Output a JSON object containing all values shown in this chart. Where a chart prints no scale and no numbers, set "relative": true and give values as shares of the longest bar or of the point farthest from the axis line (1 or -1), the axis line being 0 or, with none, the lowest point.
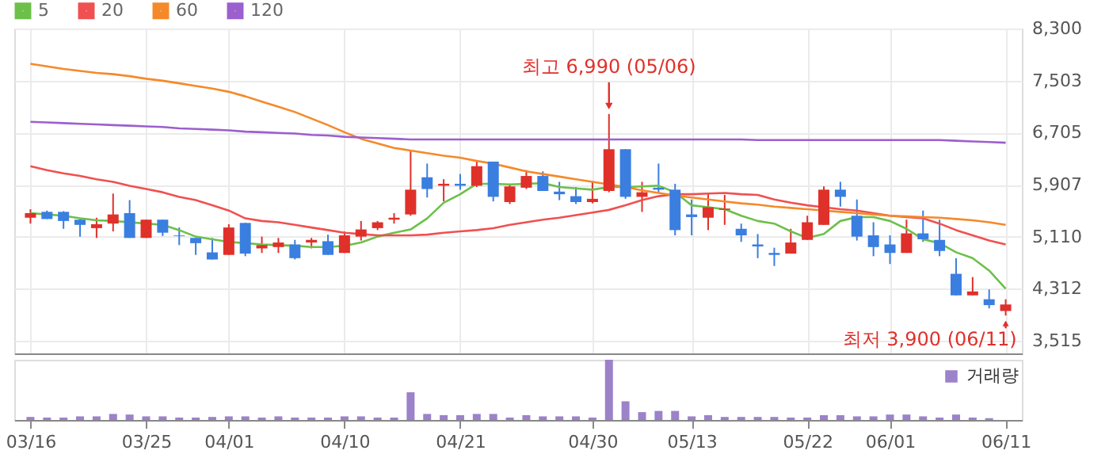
{
  "chart_data": [
    {
      "type": "candlestick",
      "categories": [
        "03/16",
        null,
        null,
        null,
        null,
        null,
        null,
        "03/25",
        null,
        null,
        null,
        null,
        "04/01",
        null,
        null,
        null,
        null,
        null,
        null,
        "04/10",
        null,
        null,
        null,
        null,
        null,
        null,
        "04/21",
        null,
        null,
        null,
        null,
        null,
        null,
        null,
        "04/30",
        null,
        null,
        null,
        null,
        null,
        "05/13",
        null,
        null,
        null,
        null,
        null,
        null,
        "05/22",
        null,
        null,
        null,
        null,
        "06/01",
        null,
        null,
        null,
        null,
        null,
        null,
        "06/11"
      ],
      "ohlc": [
        [
          5400,
          5530,
          5310,
          5470
        ],
        [
          5490,
          5510,
          5380,
          5380
        ],
        [
          5490,
          5500,
          5230,
          5350
        ],
        [
          5370,
          5380,
          5110,
          5290
        ],
        [
          5240,
          5400,
          5090,
          5300
        ],
        [
          5310,
          5770,
          5190,
          5450
        ],
        [
          5470,
          5670,
          5090,
          5090
        ],
        [
          5090,
          5370,
          5090,
          5370
        ],
        [
          5370,
          5370,
          5120,
          5170
        ],
        [
          5130,
          5250,
          4980,
          5120
        ],
        [
          5090,
          5090,
          4830,
          5010
        ],
        [
          4870,
          5090,
          4760,
          4760
        ],
        [
          4830,
          5300,
          4830,
          5250
        ],
        [
          5320,
          5320,
          4810,
          4850
        ],
        [
          4930,
          5110,
          4860,
          4980
        ],
        [
          4950,
          5090,
          4860,
          5020
        ],
        [
          4990,
          5060,
          4760,
          4780
        ],
        [
          5020,
          5090,
          4930,
          5060
        ],
        [
          5040,
          5140,
          4830,
          4830
        ],
        [
          4860,
          5190,
          4860,
          5130
        ],
        [
          5110,
          5350,
          5050,
          5220
        ],
        [
          5240,
          5350,
          5210,
          5330
        ],
        [
          5370,
          5470,
          5310,
          5400
        ],
        [
          5450,
          6430,
          5430,
          5830
        ],
        [
          6020,
          6230,
          5710,
          5840
        ],
        [
          5890,
          5990,
          5650,
          5920
        ],
        [
          5920,
          6070,
          5830,
          5890
        ],
        [
          5890,
          6280,
          5870,
          6190
        ],
        [
          6260,
          6260,
          5650,
          5720
        ],
        [
          5640,
          5920,
          5610,
          5880
        ],
        [
          5860,
          6130,
          5840,
          6040
        ],
        [
          6040,
          6110,
          5810,
          5810
        ],
        [
          5800,
          5950,
          5670,
          5760
        ],
        [
          5730,
          5870,
          5610,
          5640
        ],
        [
          5640,
          5960,
          5620,
          5690
        ],
        [
          5810,
          6990,
          5790,
          6450
        ],
        [
          6450,
          6450,
          5690,
          5720
        ],
        [
          5720,
          5950,
          5490,
          5790
        ],
        [
          5860,
          6230,
          5790,
          5830
        ],
        [
          5830,
          5920,
          5130,
          5210
        ],
        [
          5450,
          5680,
          5130,
          5410
        ],
        [
          5400,
          5760,
          5210,
          5560
        ],
        [
          5520,
          5750,
          5290,
          5540
        ],
        [
          5230,
          5310,
          5030,
          5130
        ],
        [
          4990,
          5150,
          4780,
          4960
        ],
        [
          4860,
          4940,
          4660,
          4830
        ],
        [
          4850,
          5230,
          4850,
          5020
        ],
        [
          5060,
          5430,
          5060,
          5330
        ],
        [
          5290,
          5880,
          5290,
          5830
        ],
        [
          5830,
          5950,
          5570,
          5720
        ],
        [
          5430,
          5680,
          5050,
          5110
        ],
        [
          5130,
          5330,
          4810,
          4950
        ],
        [
          4990,
          5130,
          4690,
          4860
        ],
        [
          4860,
          5370,
          4860,
          5160
        ],
        [
          5160,
          5510,
          5030,
          5070
        ],
        [
          5060,
          5370,
          4810,
          4890
        ],
        [
          4540,
          4780,
          4210,
          4210
        ],
        [
          4210,
          4490,
          4210,
          4270
        ],
        [
          4150,
          4300,
          4010,
          4060
        ],
        [
          3970,
          4150,
          3900,
          4070
        ]
      ],
      "colors": [
        "#e0302a",
        "#3a7ee0",
        "#3a7ee0",
        "#3a7ee0",
        "#e0302a",
        "#e0302a",
        "#3a7ee0",
        "#e0302a",
        "#3a7ee0",
        "#3a7ee0",
        "#3a7ee0",
        "#3a7ee0",
        "#e0302a",
        "#3a7ee0",
        "#e0302a",
        "#e0302a",
        "#3a7ee0",
        "#e0302a",
        "#3a7ee0",
        "#e0302a",
        "#e0302a",
        "#e0302a",
        "#e0302a",
        "#e0302a",
        "#3a7ee0",
        "#e0302a",
        "#3a7ee0",
        "#e0302a",
        "#3a7ee0",
        "#e0302a",
        "#e0302a",
        "#3a7ee0",
        "#3a7ee0",
        "#3a7ee0",
        "#e0302a",
        "#e0302a",
        "#3a7ee0",
        "#e0302a",
        "#3a7ee0",
        "#3a7ee0",
        "#3a7ee0",
        "#e0302a",
        "#e0302a",
        "#3a7ee0",
        "#3a7ee0",
        "#3a7ee0",
        "#e0302a",
        "#e0302a",
        "#e0302a",
        "#3a7ee0",
        "#3a7ee0",
        "#3a7ee0",
        "#3a7ee0",
        "#e0302a",
        "#3a7ee0",
        "#3a7ee0",
        "#3a7ee0",
        "#e0302a",
        "#3a7ee0",
        "#e0302a"
      ],
      "series": [
        {
          "type": "line",
          "name": "5",
          "color": "#6cc04a",
          "values": [
            5470,
            5450,
            5430,
            5390,
            5360,
            5350,
            5330,
            5310,
            5290,
            5210,
            5110,
            5070,
            5030,
            5010,
            4990,
            4980,
            4970,
            4950,
            4950,
            4970,
            5020,
            5110,
            5170,
            5220,
            5390,
            5630,
            5760,
            5920,
            5920,
            5910,
            5920,
            5930,
            5870,
            5850,
            5830,
            5870,
            5870,
            5880,
            5890,
            5790,
            5590,
            5560,
            5530,
            5430,
            5350,
            5310,
            5190,
            5090,
            5150,
            5350,
            5410,
            5410,
            5350,
            5230,
            5070,
            5010,
            4870,
            4780,
            4590,
            4310
          ]
        },
        {
          "type": "line",
          "name": "20",
          "color": "#f05050",
          "values": [
            6190,
            6130,
            6080,
            6040,
            5990,
            5950,
            5890,
            5840,
            5790,
            5720,
            5670,
            5590,
            5510,
            5390,
            5350,
            5330,
            5290,
            5250,
            5210,
            5170,
            5150,
            5130,
            5130,
            5130,
            5140,
            5170,
            5190,
            5210,
            5240,
            5290,
            5330,
            5370,
            5400,
            5440,
            5480,
            5520,
            5590,
            5670,
            5730,
            5760,
            5760,
            5770,
            5780,
            5760,
            5750,
            5680,
            5630,
            5590,
            5560,
            5530,
            5510,
            5470,
            5430,
            5410,
            5390,
            5310,
            5210,
            5130,
            5050,
            4990
          ]
        },
        {
          "type": "line",
          "name": "60",
          "color": "#f5892a",
          "values": [
            7760,
            7720,
            7680,
            7650,
            7620,
            7600,
            7570,
            7530,
            7500,
            7460,
            7420,
            7380,
            7330,
            7260,
            7180,
            7100,
            7020,
            6920,
            6820,
            6710,
            6610,
            6540,
            6470,
            6430,
            6390,
            6350,
            6320,
            6270,
            6230,
            6170,
            6110,
            6070,
            6030,
            5990,
            5950,
            5910,
            5870,
            5820,
            5780,
            5740,
            5710,
            5680,
            5650,
            5620,
            5600,
            5570,
            5550,
            5530,
            5510,
            5490,
            5470,
            5450,
            5430,
            5420,
            5410,
            5400,
            5380,
            5360,
            5330,
            5290
          ]
        },
        {
          "type": "line",
          "name": "120",
          "color": "#9b5fce",
          "values": [
            6870,
            6860,
            6850,
            6840,
            6830,
            6820,
            6810,
            6800,
            6790,
            6770,
            6760,
            6750,
            6740,
            6720,
            6710,
            6700,
            6690,
            6670,
            6660,
            6640,
            6630,
            6620,
            6610,
            6600,
            6600,
            6600,
            6600,
            6600,
            6600,
            6600,
            6600,
            6600,
            6600,
            6600,
            6600,
            6600,
            6600,
            6600,
            6600,
            6600,
            6600,
            6600,
            6600,
            6600,
            6590,
            6590,
            6590,
            6590,
            6590,
            6590,
            6590,
            6590,
            6590,
            6590,
            6590,
            6590,
            6580,
            6570,
            6560,
            6550
          ]
        }
      ],
      "ylim": [
        3320,
        8300
      ],
      "yticks": [
        {
          "value": 8300,
          "label": "8,300"
        },
        {
          "value": 7503,
          "label": "7,503"
        },
        {
          "value": 6705,
          "label": "6,705"
        },
        {
          "value": 5907,
          "label": "5,907"
        },
        {
          "value": 5110,
          "label": "5,110"
        },
        {
          "value": 4312,
          "label": "4,312"
        },
        {
          "value": 3515,
          "label": "3,515"
        }
      ],
      "grid": true,
      "legend": "top left",
      "tick_labels": "y",
      "annotations": [
        {
          "text": "최고 6,990 (05/06)",
          "y": 6990
        },
        {
          "text": "최저 3,900 (06/11)",
          "x": "06/11",
          "y": 3900
        }
      ]
    },
    {
      "type": "bar",
      "relative": true,
      "categories": [
        "03/16",
        null,
        null,
        null,
        null,
        null,
        null,
        "03/25",
        null,
        null,
        null,
        null,
        "04/01",
        null,
        null,
        null,
        null,
        null,
        null,
        "04/10",
        null,
        null,
        null,
        null,
        null,
        null,
        "04/21",
        null,
        null,
        null,
        null,
        null,
        null,
        null,
        "04/30",
        null,
        null,
        null,
        null,
        null,
        "05/13",
        null,
        null,
        null,
        null,
        null,
        null,
        "05/22",
        null,
        null,
        null,
        null,
        "06/01",
        null,
        null,
        null,
        null,
        null,
        null,
        "06/11"
      ],
      "series": [
        {
          "name": "거래량",
          "color": "#9b82c9",
          "values": [
            0.05,
            0.04,
            0.04,
            0.06,
            0.06,
            0.1,
            0.09,
            0.06,
            0.06,
            0.04,
            0.04,
            0.05,
            0.06,
            0.06,
            0.04,
            0.06,
            0.04,
            0.04,
            0.04,
            0.06,
            0.06,
            0.04,
            0.04,
            0.46,
            0.1,
            0.08,
            0.08,
            0.1,
            0.1,
            0.04,
            0.08,
            0.06,
            0.06,
            0.06,
            0.04,
            1,
            0.31,
            0.13,
            0.15,
            0.15,
            0.06,
            0.08,
            0.05,
            0.05,
            0.05,
            0.05,
            0.04,
            0.04,
            0.08,
            0.08,
            0.06,
            0.06,
            0.09,
            0.09,
            0.06,
            0.04,
            0.09,
            0.04,
            0.03,
            null
          ]
        }
      ],
      "legend": "top right",
      "tick_labels": "x"
    }
  ]
}
